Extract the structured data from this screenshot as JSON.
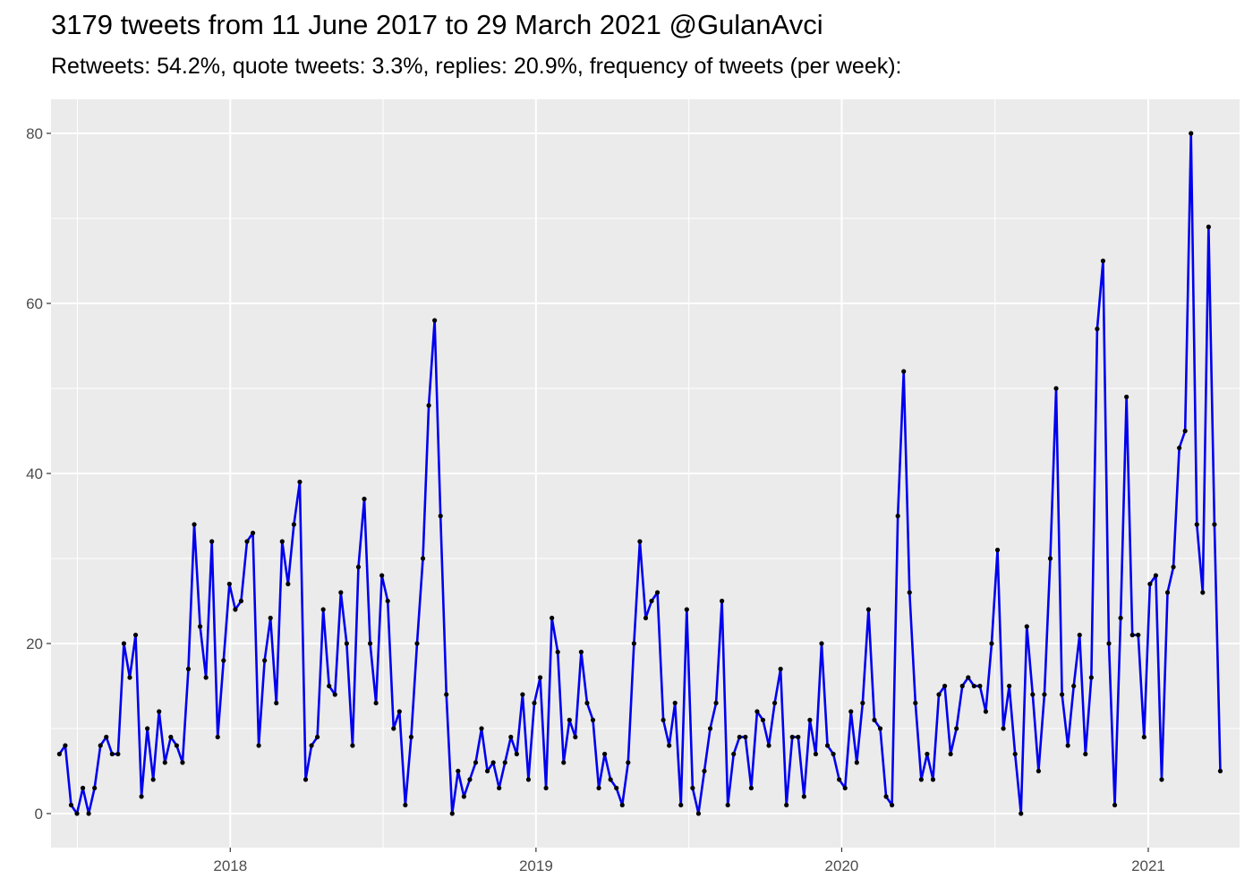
{
  "title": "3179 tweets from 11 June 2017 to 29 March 2021 @GulanAvci",
  "subtitle": "Retweets: 54.2%, quote tweets: 3.3%, replies: 20.9%, frequency of tweets (per week):",
  "colors": {
    "panel": "#ebebeb",
    "grid": "#ffffff",
    "line": "#0000ee",
    "point": "#000000",
    "tick_text": "#4d4d4d"
  },
  "chart_data": {
    "type": "line",
    "title": "3179 tweets from 11 June 2017 to 29 March 2021 @GulanAvci",
    "subtitle": "Retweets: 54.2%, quote tweets: 3.3%, replies: 20.9%, frequency of tweets (per week):",
    "xlabel": "",
    "ylabel": "",
    "x_unit": "date",
    "xlim": [
      "2017-06-01",
      "2021-04-20"
    ],
    "ylim": [
      -4,
      84
    ],
    "grid": true,
    "legend": "none",
    "x_ticks": [
      {
        "label": "2018",
        "date": "2018-01-01"
      },
      {
        "label": "2019",
        "date": "2019-01-01"
      },
      {
        "label": "2020",
        "date": "2020-01-01"
      },
      {
        "label": "2021",
        "date": "2021-01-01"
      }
    ],
    "y_ticks": [
      0,
      20,
      40,
      60,
      80
    ],
    "series": [
      {
        "start_date": "2017-06-11",
        "interval_days": 7,
        "values": [
          7,
          8,
          1,
          0,
          3,
          0,
          3,
          8,
          9,
          7,
          7,
          20,
          16,
          21,
          2,
          10,
          4,
          12,
          6,
          9,
          8,
          6,
          17,
          34,
          22,
          16,
          32,
          9,
          18,
          27,
          24,
          25,
          32,
          33,
          8,
          18,
          23,
          13,
          32,
          27,
          34,
          39,
          4,
          8,
          9,
          24,
          15,
          14,
          26,
          20,
          8,
          29,
          37,
          20,
          13,
          28,
          25,
          10,
          12,
          1,
          9,
          20,
          30,
          48,
          58,
          35,
          14,
          0,
          5,
          2,
          4,
          6,
          10,
          5,
          6,
          3,
          6,
          9,
          7,
          14,
          4,
          13,
          16,
          3,
          23,
          19,
          6,
          11,
          9,
          19,
          13,
          11,
          3,
          7,
          4,
          3,
          1,
          6,
          20,
          32,
          23,
          25,
          26,
          11,
          8,
          13,
          1,
          24,
          3,
          0,
          5,
          10,
          13,
          25,
          1,
          7,
          9,
          9,
          3,
          12,
          11,
          8,
          13,
          17,
          1,
          9,
          9,
          2,
          11,
          7,
          20,
          8,
          7,
          4,
          3,
          12,
          6,
          13,
          24,
          11,
          10,
          2,
          1,
          35,
          52,
          26,
          13,
          4,
          7,
          4,
          14,
          15,
          7,
          10,
          15,
          16,
          15,
          15,
          12,
          20,
          31,
          10,
          15,
          7,
          0,
          22,
          14,
          5,
          14,
          30,
          50,
          14,
          8,
          15,
          21,
          7,
          16,
          57,
          65,
          20,
          1,
          23,
          49,
          21,
          21,
          9,
          27,
          28,
          4,
          26,
          29,
          43,
          45,
          80,
          34,
          26,
          69,
          34,
          5
        ]
      }
    ]
  }
}
